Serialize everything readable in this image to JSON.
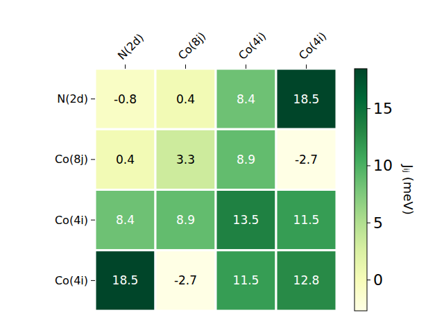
{
  "chart_data": {
    "type": "heatmap",
    "x_categories": [
      "N(2d)",
      "Co(8j)",
      "Co(4i)",
      "Co(4i)"
    ],
    "y_categories": [
      "N(2d)",
      "Co(8j)",
      "Co(4i)",
      "Co(4i)"
    ],
    "cells": [
      [
        -0.8,
        0.4,
        8.4,
        18.5
      ],
      [
        0.4,
        3.3,
        8.9,
        -2.7
      ],
      [
        8.4,
        8.9,
        13.5,
        11.5
      ],
      [
        18.5,
        -2.7,
        11.5,
        12.8
      ]
    ],
    "colorbar": {
      "label": "Jᵢⱼ (meV)",
      "range": [
        -2.7,
        18.5
      ],
      "ticks": [
        0,
        5,
        10,
        15
      ]
    },
    "data_labels": true
  }
}
